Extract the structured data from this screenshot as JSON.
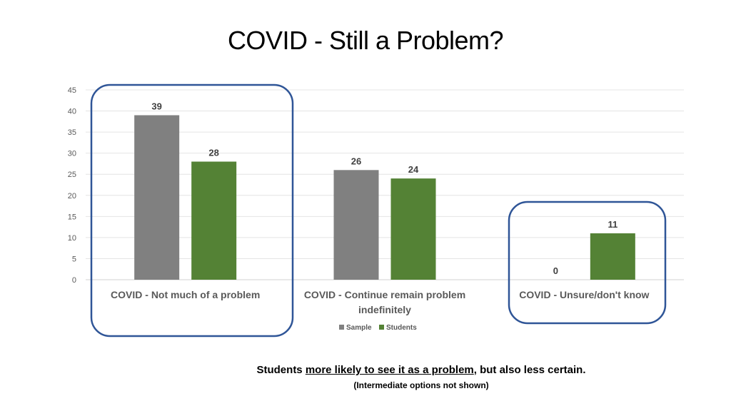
{
  "slide": {
    "title": "COVID - Still a Problem?",
    "caption_pre": "Students ",
    "caption_underlined": "more likely to see it as a problem",
    "caption_post": ", but also less certain.",
    "subcaption": "(Intermediate options not shown)"
  },
  "chart_data": {
    "type": "bar",
    "title": "",
    "xlabel": "",
    "ylabel": "",
    "ylim": [
      0,
      45
    ],
    "yticks": [
      0,
      5,
      10,
      15,
      20,
      25,
      30,
      35,
      40,
      45
    ],
    "grid": true,
    "legend_position": "bottom",
    "categories": [
      [
        "COVID - Not much of a problem"
      ],
      [
        "COVID - Continue remain problem",
        "indefinitely"
      ],
      [
        "COVID - Unsure/don't know"
      ]
    ],
    "series": [
      {
        "name": "Sample",
        "color": "#808080",
        "values": [
          39,
          26,
          0
        ]
      },
      {
        "name": "Students",
        "color": "#548235",
        "values": [
          28,
          24,
          11
        ]
      }
    ],
    "highlight_color": "#2F5597",
    "highlighted_categories": [
      0,
      2
    ]
  }
}
